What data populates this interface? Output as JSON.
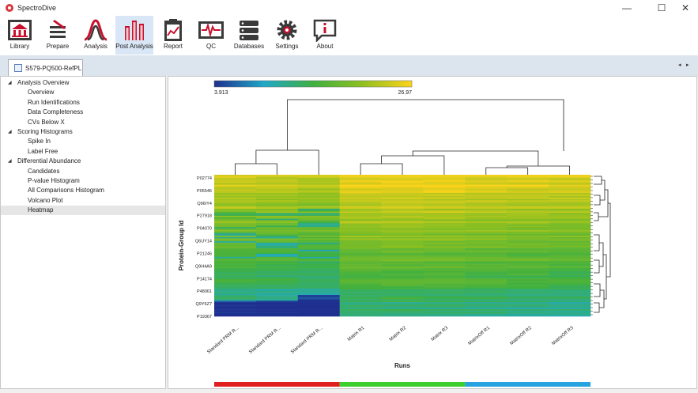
{
  "app": {
    "title": "SpectroDive"
  },
  "window_controls": {
    "minimize": "—",
    "maximize": "☐",
    "close": "✕"
  },
  "toolbar": [
    {
      "label": "Library",
      "icon": "library-icon"
    },
    {
      "label": "Prepare",
      "icon": "prepare-icon"
    },
    {
      "label": "Analysis",
      "icon": "analysis-icon"
    },
    {
      "label": "Post Analysis",
      "icon": "post-analysis-icon",
      "active": true
    },
    {
      "label": "Report",
      "icon": "report-icon"
    },
    {
      "label": "QC",
      "icon": "qc-icon"
    },
    {
      "label": "Databases",
      "icon": "databases-icon"
    },
    {
      "label": "Settings",
      "icon": "settings-icon"
    },
    {
      "label": "About",
      "icon": "about-icon"
    }
  ],
  "tab": {
    "label": "S579-PQ500-RefPL"
  },
  "tab_nav": {
    "left": "◂",
    "right": "▸"
  },
  "tree": [
    {
      "label": "Analysis Overview",
      "level": 0
    },
    {
      "label": "Overview",
      "level": 1
    },
    {
      "label": "Run Identifications",
      "level": 1
    },
    {
      "label": "Data Completeness",
      "level": 1
    },
    {
      "label": "CVs Below X",
      "level": 1
    },
    {
      "label": "Scoring Histograms",
      "level": 0
    },
    {
      "label": "Spike In",
      "level": 1
    },
    {
      "label": "Label Free",
      "level": 1
    },
    {
      "label": "Differential Abundance",
      "level": 0
    },
    {
      "label": "Candidates",
      "level": 1
    },
    {
      "label": "P-value Histogram",
      "level": 1
    },
    {
      "label": "All Comparisons Histogram",
      "level": 1
    },
    {
      "label": "Volcano Plot",
      "level": 1
    },
    {
      "label": "Heatmap",
      "level": 1,
      "selected": true
    }
  ],
  "chart_data": {
    "type": "heatmap",
    "colorbar": {
      "min": "3.913",
      "max": "26.97",
      "colors": [
        "#1f2f8f",
        "#1fa8c8",
        "#3fb040",
        "#8fc020",
        "#ffd31a"
      ]
    },
    "xlabel": "Runs",
    "ylabel": "Protein-Group Id",
    "columns": [
      "Standard PRM R...",
      "Standard PRM R...",
      "Standard PRM R...",
      "Matrix R1",
      "Matrix R2",
      "Matrix R3",
      "MatrixOff R1",
      "MatrixOff R2",
      "MatrixOff R3"
    ],
    "rows": [
      "P02774",
      "P05546",
      "Q96IY4",
      "P27918",
      "P04070",
      "Q6UY14",
      "P21246",
      "Q9H4A9",
      "P14174",
      "P48061",
      "Q9Y6Z7",
      "P19367"
    ],
    "groups": [
      {
        "color": "#e02020",
        "span": 3
      },
      {
        "color": "#3ccf2e",
        "span": 3
      },
      {
        "color": "#27a3e0",
        "span": 3
      }
    ]
  }
}
